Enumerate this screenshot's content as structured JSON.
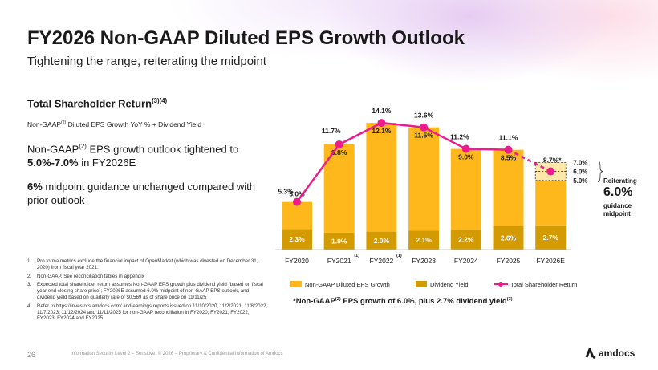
{
  "header": {
    "title": "FY2026 Non-GAAP Diluted EPS Growth Outlook",
    "subtitle": "Tightening the range, reiterating the midpoint"
  },
  "left_panel": {
    "tsr_heading": "Total Shareholder Return",
    "tsr_heading_sup": "(3)(4)",
    "tsr_definition_pre": "Non-GAAP",
    "tsr_definition_sup": "(2)",
    "tsr_definition_post": " Diluted EPS Growth YoY % + Dividend Yield",
    "p1_pre": "Non-GAAP",
    "p1_sup": "(2)",
    "p1_mid": " EPS growth outlook tightened to ",
    "p1_bold": "5.0%-7.0%",
    "p1_post": " in FY2026E",
    "p2_bold": "6%",
    "p2_rest": " midpoint guidance unchanged compared with prior outlook"
  },
  "footnotes": [
    {
      "num": "1.",
      "text": "Pro forma metrics exclude the financial impact of OpenMarket (which was divested on December 31, 2020) from fiscal year 2021."
    },
    {
      "num": "2.",
      "text": "Non-GAAP. See reconciliation tables in appendix"
    },
    {
      "num": "3.",
      "text": "Expected total shareholder return assumes Non-GAAP EPS growth plus dividend yield (based on fiscal year end closing share price); FY2026E assumed 6.0% midpoint of non-GAAP EPS outlook, and dividend yield based on quarterly rate of $0.569 as of share price on 11/11/25"
    },
    {
      "num": "4.",
      "text": "Refer to https://investors.amdocs.com/ and earnings reports issued on 11/10/2020, 11/2/2021, 11/8/2022, 11/7/2023, 11/12/2024 and 11/11/2025 for non-GAAP reconciliation in FY2020, FY2021, FY2022, FY2023, FY2024 and FY2025"
    }
  ],
  "chart_data": {
    "type": "bar",
    "categories": [
      "FY2020",
      "FY2021",
      "FY2022",
      "FY2023",
      "FY2024",
      "FY2025",
      "FY2026E"
    ],
    "category_superscripts": [
      "",
      "(1)",
      "(1)",
      "",
      "",
      "",
      ""
    ],
    "series": [
      {
        "name": "Non-GAAP Diluted EPS Growth",
        "values": [
          3.0,
          9.8,
          12.1,
          11.5,
          9.0,
          8.5,
          6.0
        ],
        "labels": [
          "3.0%",
          "9.8%",
          "12.1%",
          "11.5%",
          "9.0%",
          "8.5%",
          ""
        ],
        "color": "#FFB81C"
      },
      {
        "name": "Dividend Yield",
        "values": [
          2.3,
          1.9,
          2.0,
          2.1,
          2.2,
          2.6,
          2.7
        ],
        "labels": [
          "2.3%",
          "1.9%",
          "2.0%",
          "2.1%",
          "2.2%",
          "2.6%",
          "2.7%"
        ],
        "color": "#D49B00"
      },
      {
        "name": "Total Shareholder Return",
        "type": "line",
        "values": [
          5.3,
          11.7,
          14.1,
          13.6,
          11.2,
          11.1,
          8.7
        ],
        "labels": [
          "5.3%",
          "11.7%",
          "14.1%",
          "13.6%",
          "11.2%",
          "11.1%",
          "8.7%*"
        ],
        "color": "#EC1C8C"
      }
    ],
    "stacked": true,
    "guidance_range": {
      "low": 5.0,
      "mid": 6.0,
      "high": 7.0,
      "labels": [
        "5.0%",
        "6.0%",
        "7.0%"
      ]
    },
    "ylim": [
      0,
      16
    ],
    "grid": false,
    "legend_position": "bottom"
  },
  "reiterating": {
    "title": "Reiterating",
    "value": "6.0%",
    "line1": "guidance",
    "line2": "midpoint"
  },
  "footer_note": {
    "pre": "*Non-GAAP",
    "sup1": "(2)",
    "mid": " EPS growth of 6.0%, plus 2.7% dividend yield",
    "sup2": "(3)"
  },
  "footer": {
    "page_number": "26",
    "classification": "Information Security Level 2 – Sensitive. © 2026 – Proprietary & Confidential Information of Amdocs",
    "logo_text": "amdocs"
  },
  "colors": {
    "accent_pink": "#EC1C8C",
    "bar_yellow": "#FFB81C",
    "bar_dark_gold": "#D49B00",
    "guidance_fill": "#FFE7A8"
  }
}
